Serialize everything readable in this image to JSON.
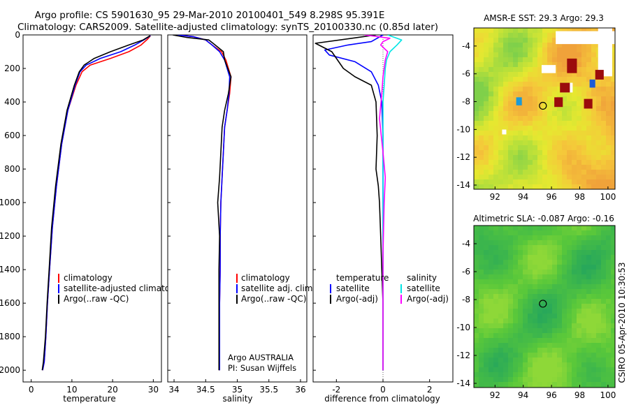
{
  "figure": {
    "title_line1": "Argo profile: CS 5901630_95 29-Mar-2010 20100401_549 8.298S 95.391E",
    "title_line2": "Climatology: CARS2009. Satellite-adjusted climatology: synTS_20100330.nc (0.85d later)",
    "side_label": "CSIRO 05-Apr-2010 10:30:53"
  },
  "colors": {
    "climatology": "#ff0000",
    "satellite_adj": "#0000ff",
    "argo": "#000000",
    "salinity_satellite": "#00e5e5",
    "salinity_argo_adj": "#ff00ff"
  },
  "chart_data": [
    {
      "type": "line",
      "name": "temperature-profile",
      "xlabel": "temperature",
      "ylabel": "",
      "xlim": [
        -2,
        32
      ],
      "ylim": [
        2070,
        0
      ],
      "xticks": [
        0,
        10,
        20,
        30
      ],
      "yticks": [
        0,
        200,
        400,
        600,
        800,
        1000,
        1200,
        1400,
        1600,
        1800,
        2000
      ],
      "legend": [
        "climatology",
        "satellite-adjusted climatology",
        "Argo(..raw -QC)"
      ],
      "series": [
        {
          "name": "climatology",
          "color": "#ff0000",
          "x": [
            29.3,
            28.6,
            27.0,
            24.0,
            19.5,
            14.5,
            12.5,
            11.0,
            9.0,
            7.5,
            6.2,
            5.2,
            4.5,
            4.0,
            3.6,
            3.2,
            2.8
          ],
          "y": [
            5,
            25,
            60,
            100,
            140,
            180,
            220,
            300,
            450,
            650,
            900,
            1150,
            1400,
            1600,
            1800,
            1950,
            2000
          ]
        },
        {
          "name": "satellite-adjusted climatology",
          "color": "#0000ff",
          "x": [
            29.3,
            28.0,
            25.5,
            22.0,
            17.0,
            13.5,
            12.0,
            10.8,
            9.0,
            7.5,
            6.2,
            5.2,
            4.5,
            4.0,
            3.6,
            3.2,
            2.8
          ],
          "y": [
            5,
            25,
            60,
            100,
            140,
            180,
            220,
            300,
            450,
            650,
            900,
            1150,
            1400,
            1600,
            1800,
            1950,
            2000
          ]
        },
        {
          "name": "Argo(..raw -QC)",
          "color": "#000000",
          "x": [
            29.2,
            27.5,
            24.0,
            19.5,
            15.5,
            13.0,
            11.8,
            10.6,
            8.8,
            7.3,
            6.0,
            5.0,
            4.4,
            3.9,
            3.5,
            3.0,
            2.7
          ],
          "y": [
            5,
            30,
            60,
            100,
            140,
            180,
            220,
            300,
            450,
            650,
            900,
            1150,
            1400,
            1600,
            1800,
            1950,
            2000
          ]
        }
      ]
    },
    {
      "type": "line",
      "name": "salinity-profile",
      "xlabel": "salinity",
      "xlim": [
        33.9,
        36.1
      ],
      "ylim": [
        2070,
        0
      ],
      "xticks": [
        34,
        34.5,
        35,
        35.5,
        36
      ],
      "legend": [
        "climatology",
        "satellite adj. clim.",
        "Argo(..raw -QC)"
      ],
      "annotation": [
        "Argo AUSTRALIA",
        "PI: Susan Wijffels"
      ],
      "series": [
        {
          "name": "climatology",
          "color": "#ff0000",
          "x": [
            34.05,
            34.3,
            34.5,
            34.6,
            34.75,
            34.82,
            34.9,
            34.88,
            34.84,
            34.8,
            34.78,
            34.76,
            34.74,
            34.73,
            34.73,
            34.72,
            34.72,
            34.72
          ],
          "y": [
            0,
            10,
            30,
            60,
            100,
            150,
            250,
            350,
            450,
            550,
            700,
            850,
            1000,
            1200,
            1400,
            1600,
            1800,
            2000
          ]
        },
        {
          "name": "satellite adj. clim.",
          "color": "#0000ff",
          "x": [
            34.05,
            34.3,
            34.5,
            34.6,
            34.72,
            34.8,
            34.88,
            34.87,
            34.84,
            34.8,
            34.78,
            34.76,
            34.74,
            34.73,
            34.73,
            34.72,
            34.72,
            34.72
          ],
          "y": [
            0,
            10,
            30,
            60,
            100,
            150,
            250,
            350,
            450,
            550,
            700,
            850,
            1000,
            1200,
            1400,
            1600,
            1800,
            2000
          ]
        },
        {
          "name": "Argo(..raw -QC)",
          "color": "#000000",
          "x": [
            33.98,
            34.2,
            34.55,
            34.65,
            34.78,
            34.8,
            34.9,
            34.86,
            34.8,
            34.76,
            34.74,
            34.72,
            34.69,
            34.72,
            34.71,
            34.71,
            34.71,
            34.71
          ],
          "y": [
            0,
            15,
            30,
            60,
            100,
            150,
            250,
            350,
            450,
            550,
            700,
            850,
            1000,
            1200,
            1400,
            1600,
            1800,
            2000
          ]
        }
      ]
    },
    {
      "type": "line",
      "name": "difference-profile",
      "xlabel": "difference from climatology",
      "xlim": [
        -3,
        3
      ],
      "ylim": [
        2070,
        0
      ],
      "xticks": [
        -2,
        0,
        2
      ],
      "legend_left_title": "temperature",
      "legend_left": [
        "satellite",
        "Argo(-adj)"
      ],
      "legend_right_title": "salinity",
      "legend_right": [
        "satellite",
        "Argo(-adj)"
      ],
      "series": [
        {
          "name": "temperature satellite",
          "color": "#0000ff",
          "x": [
            0,
            -0.5,
            -1.5,
            -2.5,
            -2.3,
            -1.2,
            -0.5,
            -0.2,
            -0.05,
            0,
            0,
            0,
            0,
            0,
            0,
            0,
            0
          ],
          "y": [
            0,
            40,
            60,
            90,
            120,
            160,
            220,
            300,
            400,
            600,
            800,
            1000,
            1200,
            1400,
            1600,
            1800,
            2000
          ]
        },
        {
          "name": "temperature Argo(-adj)",
          "color": "#000000",
          "x": [
            -0.3,
            -2.9,
            -2.2,
            -1.7,
            -1.2,
            -0.5,
            -0.3,
            -0.25,
            -0.3,
            -0.2,
            -0.15,
            -0.1,
            -0.05,
            0,
            0,
            0
          ],
          "y": [
            0,
            50,
            100,
            200,
            250,
            300,
            400,
            600,
            800,
            900,
            1000,
            1200,
            1400,
            1600,
            1800,
            2000
          ]
        },
        {
          "name": "salinity satellite",
          "color": "#00e5e5",
          "x": [
            0.2,
            0.8,
            0.6,
            0.3,
            0.15,
            0.1,
            0.05,
            0,
            0,
            0,
            0,
            0,
            0,
            0
          ],
          "y": [
            0,
            30,
            60,
            100,
            150,
            200,
            300,
            400,
            600,
            800,
            1000,
            1400,
            1700,
            2000
          ]
        },
        {
          "name": "salinity Argo(-adj)",
          "color": "#ff00ff",
          "x": [
            -0.8,
            0.3,
            0.0,
            -0.1,
            0.2,
            0.1,
            0,
            -0.05,
            -0.15,
            0.0,
            0.1,
            0.05,
            0,
            0,
            0
          ],
          "y": [
            0,
            20,
            40,
            60,
            100,
            150,
            250,
            350,
            500,
            700,
            850,
            1000,
            1300,
            1600,
            2000
          ]
        }
      ]
    },
    {
      "type": "heatmap",
      "name": "sst-map",
      "title": "AMSR-E SST: 29.3  Argo: 29.3",
      "xlim": [
        90.5,
        100.5
      ],
      "ylim": [
        -14.3,
        -2.7
      ],
      "xticks": [
        92,
        94,
        96,
        98,
        100
      ],
      "yticks": [
        -4,
        -6,
        -8,
        -10,
        -12,
        -14
      ],
      "argo_position": [
        95.391,
        -8.298
      ]
    },
    {
      "type": "heatmap",
      "name": "sla-map",
      "title": "Altimetric SLA: -0.087  Argo: -0.16",
      "xlim": [
        90.5,
        100.5
      ],
      "ylim": [
        -14.3,
        -2.7
      ],
      "xticks": [
        92,
        94,
        96,
        98,
        100
      ],
      "yticks": [
        -4,
        -6,
        -8,
        -10,
        -12,
        -14
      ],
      "argo_position": [
        95.391,
        -8.298
      ]
    }
  ]
}
